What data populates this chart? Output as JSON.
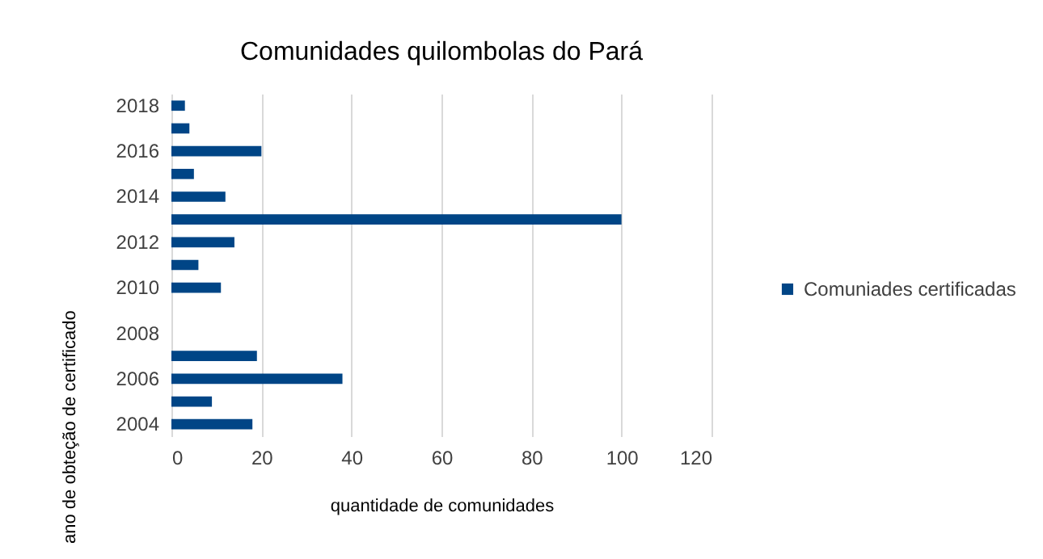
{
  "chart_data": {
    "type": "bar",
    "orientation": "horizontal",
    "title": "Comunidades quilombolas do Pará",
    "xlabel": "quantidade de comunidades",
    "ylabel": "ano de obteção de certificado",
    "categories": [
      "2018",
      null,
      "2016",
      null,
      "2014",
      null,
      "2012",
      null,
      "2010",
      null,
      "2008",
      null,
      "2006",
      null,
      "2004"
    ],
    "series": [
      {
        "name": "Comuniades certificadas",
        "color": "#004586",
        "values": [
          3,
          4,
          20,
          5,
          12,
          100,
          14,
          6,
          11,
          null,
          null,
          19,
          38,
          9,
          18
        ]
      }
    ],
    "xlim": [
      0,
      120
    ],
    "xticks": [
      0,
      20,
      40,
      60,
      80,
      100,
      120
    ],
    "grid": "x",
    "legend": "right"
  }
}
